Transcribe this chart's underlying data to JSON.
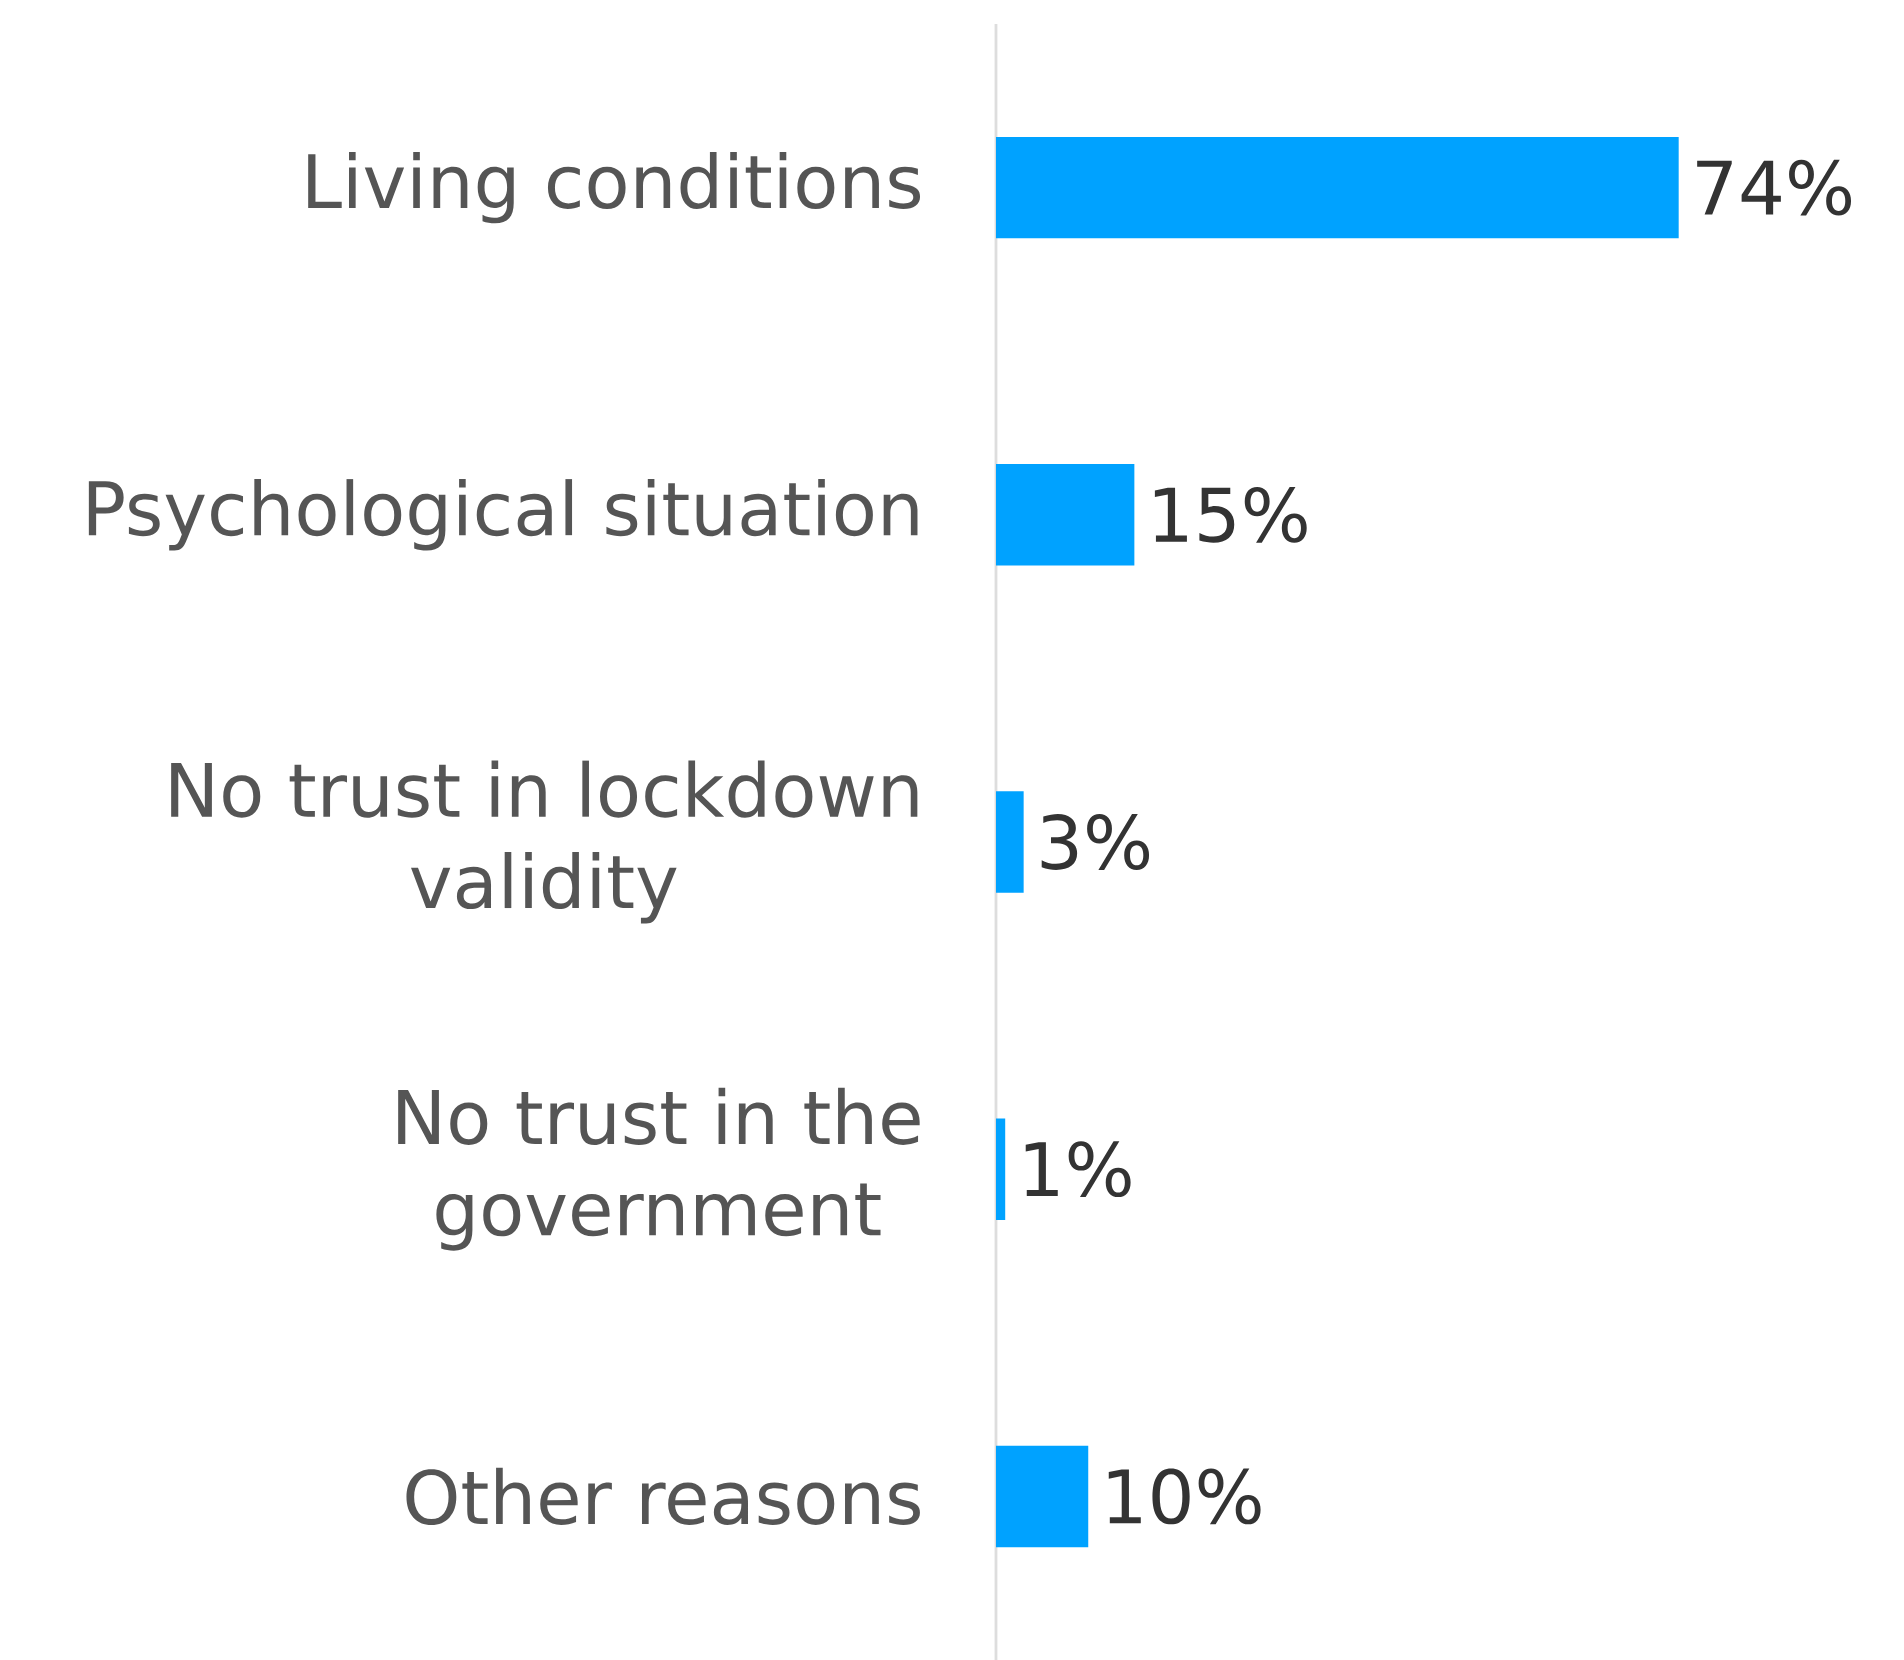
{
  "chart_data": {
    "type": "bar",
    "orientation": "horizontal",
    "categories": [
      "Living conditions",
      "Psychological situation",
      "No trust in lockdown validity",
      "No trust in the government",
      "Other reasons"
    ],
    "values": [
      74,
      15,
      3,
      1,
      10
    ],
    "value_labels": [
      "74%",
      "15%",
      "3%",
      "1%",
      "10%"
    ],
    "color": "#00a2ff"
  }
}
